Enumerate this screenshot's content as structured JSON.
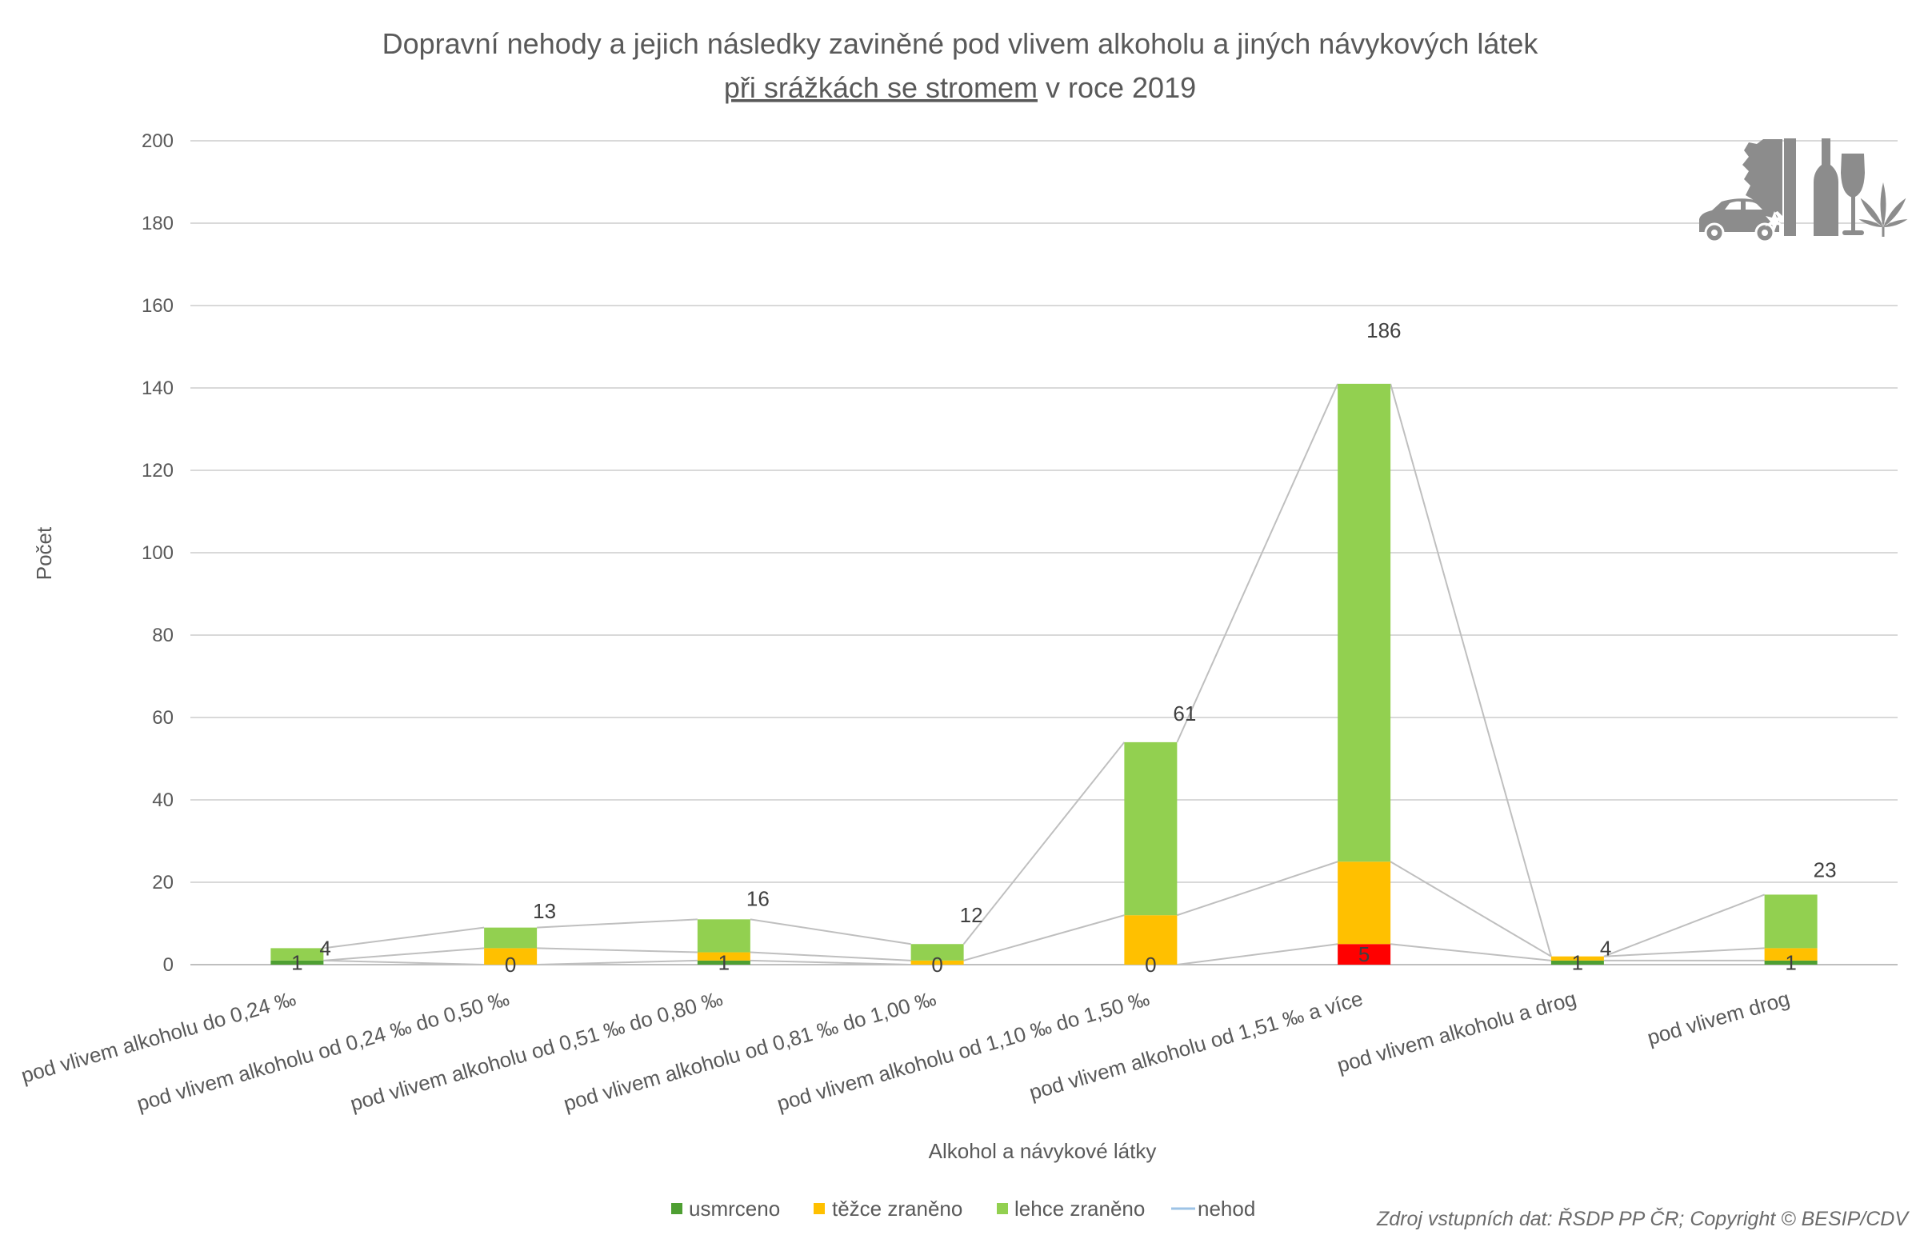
{
  "chart_data": {
    "type": "bar",
    "stacked": true,
    "title": "Dopravní nehody a jejich následky zaviněné pod vlivem alkoholu a jiných návykových látek",
    "subtitle_underlined": "při srážkách se stromem",
    "subtitle_rest": "v roce 2019",
    "xlabel": "Alkohol a návykové látky",
    "ylabel": "Počet",
    "ylim": [
      0,
      200
    ],
    "yticks": [
      0,
      20,
      40,
      60,
      80,
      100,
      120,
      140,
      160,
      180,
      200
    ],
    "grid": true,
    "legend": "bottom",
    "categories": [
      "pod vlivem alkoholu do 0,24 ‰",
      "pod vlivem alkoholu od 0,24 ‰ do 0,50 ‰",
      "pod vlivem alkoholu od 0,51 ‰ do 0,80 ‰",
      "pod vlivem alkoholu od 0,81 ‰ do 1,00 ‰",
      "pod vlivem alkoholu od 1,10 ‰ do 1,50 ‰",
      "pod vlivem alkoholu od 1,51 ‰ a více",
      "pod vlivem alkoholu a drog",
      "pod vlivem drog"
    ],
    "series": [
      {
        "name": "usmrceno",
        "kind": "bar",
        "color": "#4E9F32",
        "values": [
          1,
          0,
          1,
          0,
          0,
          5,
          1,
          1
        ],
        "point_colors": {
          "5": "#FF0000"
        },
        "data_labels": true
      },
      {
        "name": "těžce zraněno",
        "kind": "bar",
        "color": "#FFC000",
        "values": [
          0,
          4,
          2,
          1,
          12,
          20,
          1,
          3
        ],
        "data_labels": false
      },
      {
        "name": "lehce zraněno",
        "kind": "bar",
        "color": "#92D050",
        "values": [
          3,
          5,
          8,
          4,
          42,
          116,
          0,
          13
        ],
        "data_labels": false
      },
      {
        "name": "nehod",
        "kind": "line",
        "color": "#9DC3E6",
        "values": [
          4,
          13,
          16,
          12,
          61,
          186,
          4,
          23
        ],
        "data_labels": true
      }
    ],
    "series_lines_color": "#BFBFBF"
  },
  "corner_icons": [
    "car-icon",
    "tree-icon",
    "wine-bottle-icon",
    "wine-glass-icon",
    "cannabis-leaf-icon"
  ],
  "source_note": "Zdroj vstupních dat: ŘSDP PP ČR; Copyright © BESIP/CDV"
}
